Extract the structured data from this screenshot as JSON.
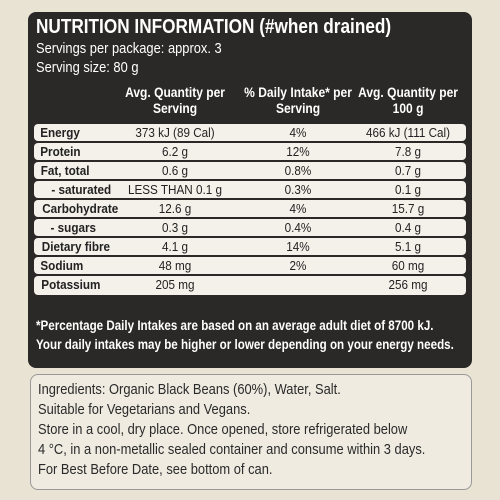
{
  "header": {
    "title": "NUTRITION INFORMATION (#when drained)",
    "servings": "Servings per package: approx. 3",
    "serving_size": "Serving size: 80 g"
  },
  "table": {
    "columns": [
      "",
      "Avg. Quantity per Serving",
      "% Daily Intake* per Serving",
      "Avg. Quantity per 100 g"
    ],
    "rows": [
      [
        "Energy",
        "373 kJ (89 Cal)",
        "4%",
        "466 kJ (111 Cal)"
      ],
      [
        "Protein",
        "6.2 g",
        "12%",
        "7.8 g"
      ],
      [
        "Fat, total",
        "0.6 g",
        "0.8%",
        "0.7 g"
      ],
      [
        "- saturated",
        "LESS THAN 0.1 g",
        "0.3%",
        "0.1 g"
      ],
      [
        "Carbohydrate",
        "12.6 g",
        "4%",
        "15.7 g"
      ],
      [
        "- sugars",
        "0.3 g",
        "0.4%",
        "0.4 g"
      ],
      [
        "Dietary fibre",
        "4.1 g",
        "14%",
        "5.1 g"
      ],
      [
        "Sodium",
        "48 mg",
        "2%",
        "60 mg"
      ],
      [
        "Potassium",
        "205 mg",
        "",
        "256 mg"
      ]
    ]
  },
  "footnote": [
    "*Percentage Daily Intakes are based on an average adult diet of 8700 kJ.",
    "Your daily intakes may be higher or lower depending on your energy needs."
  ],
  "ingredients": [
    "Ingredients: Organic Black Beans (60%), Water, Salt.",
    "Suitable for Vegetarians and Vegans.",
    "Store in a cool, dry place. Once opened, store refrigerated below",
    "4 °C, in a non-metallic sealed container and consume within 3 days.",
    "For Best Before Date, see bottom of can."
  ]
}
